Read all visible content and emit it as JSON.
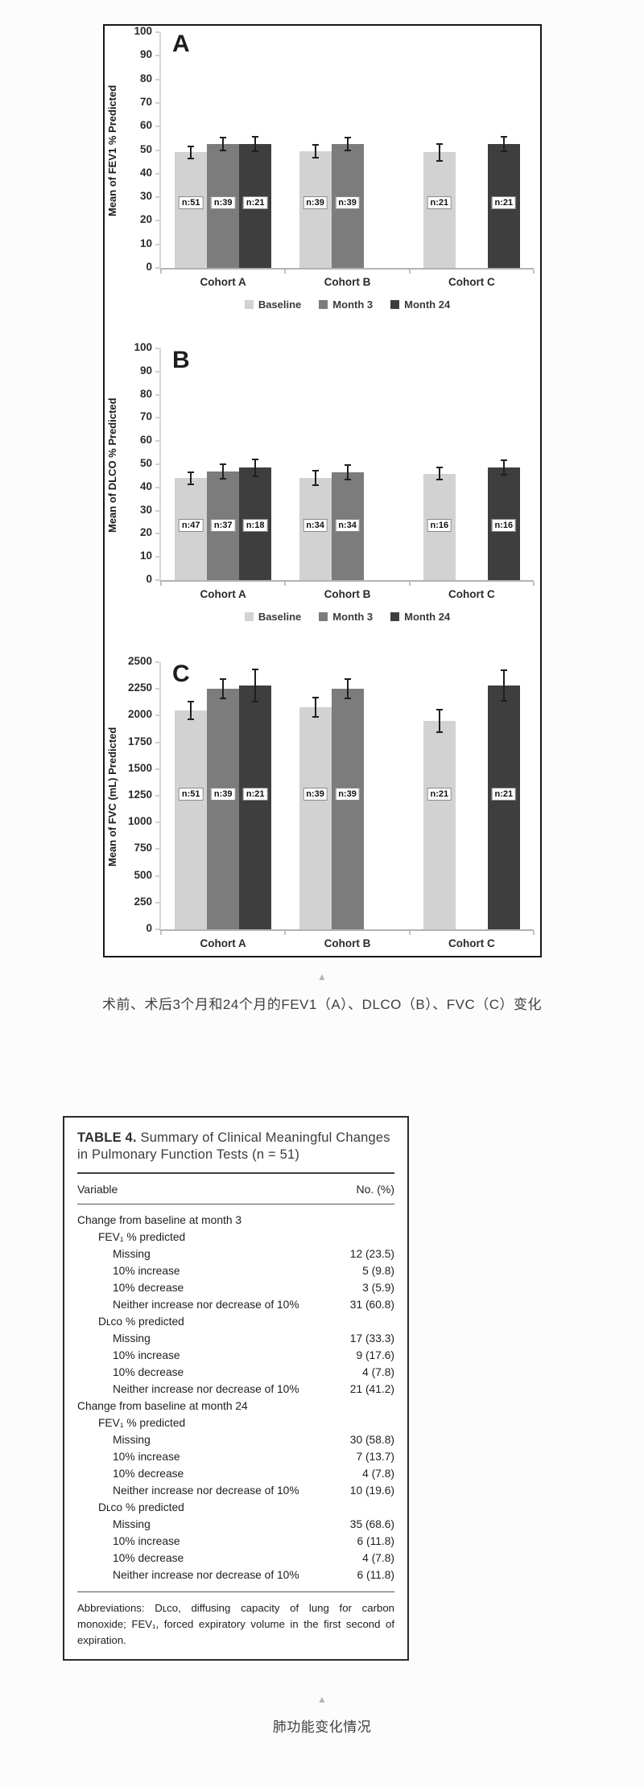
{
  "captions": {
    "figure": "术前、术后3个月和24个月的FEV1（A）、DLCO（B）、FVC（C）变化",
    "table": "肺功能变化情况"
  },
  "chart_data": [
    {
      "type": "bar",
      "panel_label": "A",
      "title": "",
      "xlabel": "",
      "ylabel": "Mean of FEV1 % Predicted",
      "ylim": [
        0,
        100
      ],
      "ytick_step": 10,
      "grid": false,
      "legend_position": "bottom",
      "categories": [
        "Cohort A",
        "Cohort B",
        "Cohort C"
      ],
      "series": [
        {
          "name": "Baseline",
          "color": "#d2d2d2"
        },
        {
          "name": "Month 3",
          "color": "#7c7c7c"
        },
        {
          "name": "Month 24",
          "color": "#3e3e3e"
        }
      ],
      "n_label_value": 28,
      "bars": [
        {
          "category": "Cohort A",
          "group": 0,
          "series": "Baseline",
          "slot": 0,
          "value": 49,
          "err": 3,
          "n": "n:51"
        },
        {
          "category": "Cohort A",
          "group": 0,
          "series": "Month 3",
          "slot": 1,
          "value": 52.5,
          "err": 3,
          "n": "n:39"
        },
        {
          "category": "Cohort A",
          "group": 0,
          "series": "Month 24",
          "slot": 2,
          "value": 52.5,
          "err": 3.5,
          "n": "n:21"
        },
        {
          "category": "Cohort B",
          "group": 1,
          "series": "Baseline",
          "slot": 0,
          "value": 49.5,
          "err": 3,
          "n": "n:39"
        },
        {
          "category": "Cohort B",
          "group": 1,
          "series": "Month 3",
          "slot": 1,
          "value": 52.5,
          "err": 3,
          "n": "n:39"
        },
        {
          "category": "Cohort C",
          "group": 2,
          "series": "Baseline",
          "slot": 0,
          "value": 49,
          "err": 4,
          "n": "n:21"
        },
        {
          "category": "Cohort C",
          "group": 2,
          "series": "Month 24",
          "slot": 2,
          "value": 52.5,
          "err": 3.5,
          "n": "n:21"
        }
      ]
    },
    {
      "type": "bar",
      "panel_label": "B",
      "title": "",
      "xlabel": "",
      "ylabel": "Mean of DLCO % Predicted",
      "ylim": [
        0,
        100
      ],
      "ytick_step": 10,
      "grid": false,
      "legend_position": "bottom",
      "categories": [
        "Cohort A",
        "Cohort B",
        "Cohort C"
      ],
      "series": [
        {
          "name": "Baseline",
          "color": "#d2d2d2"
        },
        {
          "name": "Month 3",
          "color": "#7c7c7c"
        },
        {
          "name": "Month 24",
          "color": "#3e3e3e"
        }
      ],
      "n_label_value": 24,
      "bars": [
        {
          "category": "Cohort A",
          "group": 0,
          "series": "Baseline",
          "slot": 0,
          "value": 44,
          "err": 3,
          "n": "n:47"
        },
        {
          "category": "Cohort A",
          "group": 0,
          "series": "Month 3",
          "slot": 1,
          "value": 47,
          "err": 3.5,
          "n": "n:37"
        },
        {
          "category": "Cohort A",
          "group": 0,
          "series": "Month 24",
          "slot": 2,
          "value": 48.5,
          "err": 4,
          "n": "n:18"
        },
        {
          "category": "Cohort B",
          "group": 1,
          "series": "Baseline",
          "slot": 0,
          "value": 44,
          "err": 3.5,
          "n": "n:34"
        },
        {
          "category": "Cohort B",
          "group": 1,
          "series": "Month 3",
          "slot": 1,
          "value": 46.5,
          "err": 3.5,
          "n": "n:34"
        },
        {
          "category": "Cohort C",
          "group": 2,
          "series": "Baseline",
          "slot": 0,
          "value": 46,
          "err": 3,
          "n": "n:16"
        },
        {
          "category": "Cohort C",
          "group": 2,
          "series": "Month 24",
          "slot": 2,
          "value": 48.5,
          "err": 3.5,
          "n": "n:16"
        }
      ]
    },
    {
      "type": "bar",
      "panel_label": "C",
      "title": "",
      "xlabel": "",
      "ylabel": "Mean of FVC (mL) Predicted",
      "ylim": [
        0,
        2500
      ],
      "ytick_step": 250,
      "grid": false,
      "legend_position": "bottom",
      "categories": [
        "Cohort A",
        "Cohort B",
        "Cohort C"
      ],
      "series": [
        {
          "name": "Baseline",
          "color": "#d2d2d2"
        },
        {
          "name": "Month 3",
          "color": "#7c7c7c"
        },
        {
          "name": "Month 24",
          "color": "#3e3e3e"
        }
      ],
      "n_label_value": 1270,
      "bars": [
        {
          "category": "Cohort A",
          "group": 0,
          "series": "Baseline",
          "slot": 0,
          "value": 2050,
          "err": 90,
          "n": "n:51"
        },
        {
          "category": "Cohort A",
          "group": 0,
          "series": "Month 3",
          "slot": 1,
          "value": 2250,
          "err": 100,
          "n": "n:39"
        },
        {
          "category": "Cohort A",
          "group": 0,
          "series": "Month 24",
          "slot": 2,
          "value": 2280,
          "err": 160,
          "n": "n:21"
        },
        {
          "category": "Cohort B",
          "group": 1,
          "series": "Baseline",
          "slot": 0,
          "value": 2080,
          "err": 100,
          "n": "n:39"
        },
        {
          "category": "Cohort B",
          "group": 1,
          "series": "Month 3",
          "slot": 1,
          "value": 2250,
          "err": 100,
          "n": "n:39"
        },
        {
          "category": "Cohort C",
          "group": 2,
          "series": "Baseline",
          "slot": 0,
          "value": 1950,
          "err": 110,
          "n": "n:21"
        },
        {
          "category": "Cohort C",
          "group": 2,
          "series": "Month 24",
          "slot": 2,
          "value": 2280,
          "err": 150,
          "n": "n:21"
        }
      ]
    }
  ],
  "table": {
    "title_bold": "TABLE 4.",
    "title_rest": " Summary of Clinical Meaningful Changes in Pulmonary Function Tests (n = 51)",
    "col_variable": "Variable",
    "col_value": "No. (%)",
    "rows": [
      {
        "label": "Change from baseline at month 3",
        "value": "",
        "indent": 0
      },
      {
        "label": "FEV₁ % predicted",
        "value": "",
        "indent": 1
      },
      {
        "label": "Missing",
        "value": "12 (23.5)",
        "indent": 2
      },
      {
        "label": "10% increase",
        "value": "5 (9.8)",
        "indent": 2
      },
      {
        "label": "10% decrease",
        "value": "3 (5.9)",
        "indent": 2
      },
      {
        "label": "Neither increase nor decrease of 10%",
        "value": "31 (60.8)",
        "indent": 2
      },
      {
        "label": "Dʟᴄᴏ % predicted",
        "value": "",
        "indent": 1
      },
      {
        "label": "Missing",
        "value": "17 (33.3)",
        "indent": 2
      },
      {
        "label": "10% increase",
        "value": "9 (17.6)",
        "indent": 2
      },
      {
        "label": "10% decrease",
        "value": "4 (7.8)",
        "indent": 2
      },
      {
        "label": "Neither increase nor decrease of 10%",
        "value": "21 (41.2)",
        "indent": 2
      },
      {
        "label": "Change from baseline at month 24",
        "value": "",
        "indent": 0
      },
      {
        "label": "FEV₁ % predicted",
        "value": "",
        "indent": 1
      },
      {
        "label": "Missing",
        "value": "30 (58.8)",
        "indent": 2
      },
      {
        "label": "10% increase",
        "value": "7 (13.7)",
        "indent": 2
      },
      {
        "label": "10% decrease",
        "value": "4 (7.8)",
        "indent": 2
      },
      {
        "label": "Neither increase nor decrease of 10%",
        "value": "10 (19.6)",
        "indent": 2
      },
      {
        "label": "Dʟᴄᴏ % predicted",
        "value": "",
        "indent": 1
      },
      {
        "label": "Missing",
        "value": "35 (68.6)",
        "indent": 2
      },
      {
        "label": "10% increase",
        "value": "6 (11.8)",
        "indent": 2
      },
      {
        "label": "10% decrease",
        "value": "4 (7.8)",
        "indent": 2
      },
      {
        "label": "Neither increase nor decrease of 10%",
        "value": "6 (11.8)",
        "indent": 2
      }
    ],
    "footnote": "Abbreviations: Dʟᴄᴏ, diffusing capacity of lung for carbon monoxide; FEV₁, forced expiratory volume in the first second of expiration."
  }
}
